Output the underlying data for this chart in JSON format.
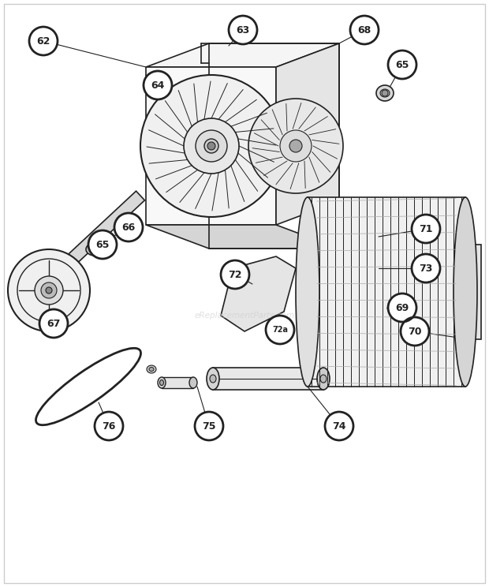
{
  "bg_color": "#ffffff",
  "label_bg": "#1a1a1a",
  "label_text": "#ffffff",
  "label_outline": "#1a1a1a",
  "line_color": "#222222",
  "light_gray": "#e8e8e8",
  "mid_gray": "#cccccc",
  "dark_gray": "#aaaaaa",
  "watermark": "eReplacementParts.com",
  "figsize": [
    6.2,
    7.44
  ],
  "dpi": 100
}
